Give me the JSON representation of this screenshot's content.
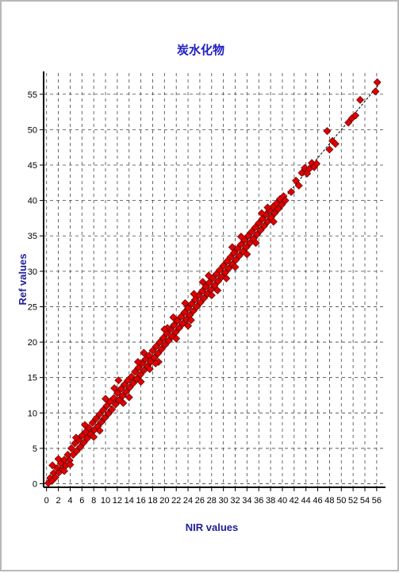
{
  "chart_data": {
    "type": "scatter",
    "title": "炭水化物",
    "xlabel": "NIR values",
    "ylabel": "Ref values",
    "xlim": [
      -0.5,
      57.5
    ],
    "ylim": [
      -0.5,
      58
    ],
    "x_ticks": [
      0,
      2,
      4,
      6,
      8,
      10,
      12,
      14,
      16,
      18,
      20,
      22,
      24,
      26,
      28,
      30,
      32,
      34,
      36,
      38,
      40,
      42,
      44,
      46,
      48,
      50,
      52,
      54,
      56
    ],
    "y_ticks": [
      0,
      5,
      10,
      15,
      20,
      25,
      30,
      35,
      40,
      45,
      50,
      55
    ],
    "grid": true,
    "marker": "diamond",
    "marker_color": "#e00000",
    "marker_edge": "#600000",
    "line_color": "#000000",
    "fit_line": [
      [
        0,
        0
      ],
      [
        56.5,
        56.5
      ]
    ],
    "series": [
      {
        "values_xy": [
          [
            0.3,
            0.1
          ],
          [
            0.6,
            0.8
          ],
          [
            0.9,
            0.4
          ],
          [
            1.2,
            1.5
          ],
          [
            1.5,
            0.9
          ],
          [
            1.8,
            2.2
          ],
          [
            2.1,
            1.6
          ],
          [
            2.4,
            2.9
          ],
          [
            2.7,
            2.0
          ],
          [
            3.0,
            3.4
          ],
          [
            3.3,
            2.6
          ],
          [
            3.6,
            4.1
          ],
          [
            3.9,
            3.3
          ],
          [
            4.2,
            5.0
          ],
          [
            4.5,
            4.1
          ],
          [
            4.8,
            5.7
          ],
          [
            5.1,
            4.6
          ],
          [
            5.4,
            6.2
          ],
          [
            5.7,
            5.2
          ],
          [
            6.0,
            6.8
          ],
          [
            6.3,
            5.8
          ],
          [
            6.6,
            7.3
          ],
          [
            6.9,
            6.4
          ],
          [
            7.2,
            7.9
          ],
          [
            7.5,
            7.0
          ],
          [
            7.8,
            8.6
          ],
          [
            8.1,
            7.6
          ],
          [
            8.4,
            9.2
          ],
          [
            8.7,
            8.1
          ],
          [
            9.0,
            9.8
          ],
          [
            9.3,
            8.7
          ],
          [
            9.6,
            10.4
          ],
          [
            9.9,
            9.3
          ],
          [
            10.2,
            11.0
          ],
          [
            10.5,
            9.9
          ],
          [
            10.8,
            11.6
          ],
          [
            11.1,
            10.5
          ],
          [
            11.4,
            12.1
          ],
          [
            11.7,
            11.2
          ],
          [
            12.0,
            12.8
          ],
          [
            12.3,
            11.8
          ],
          [
            12.6,
            13.4
          ],
          [
            12.9,
            12.4
          ],
          [
            13.2,
            14.0
          ],
          [
            13.5,
            13.0
          ],
          [
            13.8,
            14.6
          ],
          [
            14.1,
            13.6
          ],
          [
            14.4,
            15.1
          ],
          [
            14.7,
            14.2
          ],
          [
            15.0,
            15.8
          ],
          [
            15.3,
            14.8
          ],
          [
            15.6,
            16.4
          ],
          [
            15.9,
            15.4
          ],
          [
            16.2,
            17.0
          ],
          [
            16.5,
            16.0
          ],
          [
            16.8,
            17.6
          ],
          [
            17.1,
            16.6
          ],
          [
            17.4,
            18.1
          ],
          [
            17.7,
            17.2
          ],
          [
            18.0,
            18.8
          ],
          [
            18.3,
            17.8
          ],
          [
            18.6,
            19.4
          ],
          [
            18.9,
            18.4
          ],
          [
            19.2,
            20.0
          ],
          [
            19.5,
            19.0
          ],
          [
            19.8,
            20.6
          ],
          [
            20.1,
            19.6
          ],
          [
            20.4,
            21.2
          ],
          [
            20.7,
            20.2
          ],
          [
            21.0,
            21.8
          ],
          [
            21.3,
            20.8
          ],
          [
            21.6,
            22.4
          ],
          [
            21.9,
            21.4
          ],
          [
            22.2,
            23.0
          ],
          [
            22.5,
            22.0
          ],
          [
            22.8,
            23.6
          ],
          [
            23.1,
            22.6
          ],
          [
            23.4,
            24.2
          ],
          [
            23.7,
            23.2
          ],
          [
            24.0,
            24.8
          ],
          [
            24.3,
            23.8
          ],
          [
            24.6,
            25.4
          ],
          [
            24.9,
            24.4
          ],
          [
            25.2,
            26.0
          ],
          [
            25.5,
            25.0
          ],
          [
            25.8,
            26.6
          ],
          [
            26.1,
            25.6
          ],
          [
            26.4,
            27.2
          ],
          [
            26.7,
            26.2
          ],
          [
            27.0,
            27.8
          ],
          [
            27.3,
            26.8
          ],
          [
            27.6,
            28.4
          ],
          [
            27.9,
            27.4
          ],
          [
            28.2,
            29.0
          ],
          [
            28.5,
            28.0
          ],
          [
            28.8,
            29.6
          ],
          [
            29.1,
            28.6
          ],
          [
            29.4,
            30.2
          ],
          [
            29.7,
            29.2
          ],
          [
            30.0,
            30.8
          ],
          [
            30.3,
            29.8
          ],
          [
            30.6,
            31.4
          ],
          [
            30.9,
            30.4
          ],
          [
            31.2,
            32.0
          ],
          [
            31.5,
            31.0
          ],
          [
            31.8,
            32.6
          ],
          [
            32.1,
            31.6
          ],
          [
            32.4,
            33.2
          ],
          [
            32.7,
            32.2
          ],
          [
            33.0,
            33.8
          ],
          [
            33.3,
            32.8
          ],
          [
            33.6,
            34.4
          ],
          [
            33.9,
            33.4
          ],
          [
            34.2,
            35.0
          ],
          [
            34.5,
            34.0
          ],
          [
            34.8,
            35.6
          ],
          [
            35.1,
            34.6
          ],
          [
            35.4,
            36.2
          ],
          [
            35.7,
            35.2
          ],
          [
            36.0,
            36.8
          ],
          [
            36.3,
            35.8
          ],
          [
            36.6,
            37.4
          ],
          [
            36.9,
            36.4
          ],
          [
            37.2,
            38.0
          ],
          [
            37.5,
            37.0
          ],
          [
            37.8,
            38.6
          ],
          [
            38.1,
            37.6
          ],
          [
            38.4,
            39.1
          ],
          [
            38.7,
            38.2
          ],
          [
            39.0,
            39.6
          ],
          [
            39.3,
            38.8
          ],
          [
            39.6,
            40.2
          ],
          [
            39.9,
            39.4
          ],
          [
            40.2,
            40.6
          ],
          [
            40.5,
            40.0
          ],
          [
            41.5,
            41.2
          ],
          [
            42.3,
            42.8
          ],
          [
            42.8,
            42.1
          ],
          [
            43.3,
            43.9
          ],
          [
            43.8,
            44.6
          ],
          [
            44.2,
            43.8
          ],
          [
            44.6,
            44.5
          ],
          [
            45.0,
            45.3
          ],
          [
            45.4,
            44.7
          ],
          [
            45.8,
            45.2
          ],
          [
            47.6,
            49.8
          ],
          [
            48.0,
            47.2
          ],
          [
            48.5,
            48.4
          ],
          [
            49.0,
            48.0
          ],
          [
            51.2,
            51.0
          ],
          [
            51.8,
            51.6
          ],
          [
            52.4,
            52.0
          ],
          [
            53.2,
            54.2
          ],
          [
            55.8,
            55.4
          ],
          [
            56.1,
            56.7
          ],
          [
            2.0,
            3.5
          ],
          [
            4.0,
            2.7
          ],
          [
            6.5,
            8.3
          ],
          [
            9.0,
            7.5
          ],
          [
            11.5,
            13.5
          ],
          [
            14.0,
            12.2
          ],
          [
            16.5,
            18.5
          ],
          [
            19.0,
            17.2
          ],
          [
            21.5,
            23.5
          ],
          [
            24.0,
            22.3
          ],
          [
            26.5,
            28.5
          ],
          [
            29.0,
            27.3
          ],
          [
            31.5,
            33.4
          ],
          [
            34.0,
            32.4
          ],
          [
            36.5,
            38.2
          ],
          [
            38.5,
            37.0
          ],
          [
            17.5,
            16.2
          ],
          [
            20.5,
            22.0
          ],
          [
            23.5,
            25.5
          ],
          [
            28.0,
            26.6
          ],
          [
            1.0,
            2.6
          ],
          [
            3.0,
            1.8
          ],
          [
            5.0,
            6.5
          ],
          [
            8.0,
            6.6
          ],
          [
            10.0,
            12.0
          ],
          [
            13.0,
            11.4
          ],
          [
            15.5,
            17.2
          ],
          [
            18.5,
            17.0
          ],
          [
            22.0,
            20.5
          ],
          [
            25.0,
            26.8
          ],
          [
            27.5,
            29.4
          ],
          [
            30.5,
            29.0
          ],
          [
            33.0,
            34.9
          ],
          [
            35.5,
            34.0
          ],
          [
            37.5,
            39.0
          ],
          [
            12.2,
            14.6
          ],
          [
            16.0,
            14.4
          ],
          [
            20.0,
            21.8
          ],
          [
            24.5,
            23.1
          ],
          [
            32.0,
            30.6
          ]
        ]
      }
    ]
  }
}
